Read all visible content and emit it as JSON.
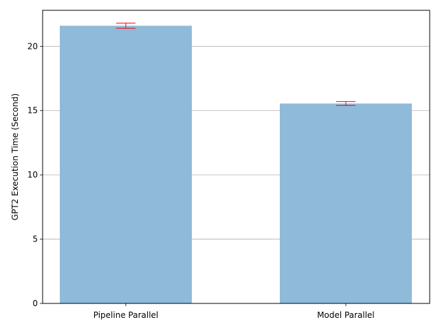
{
  "chart_data": {
    "type": "bar",
    "categories": [
      "Pipeline Parallel",
      "Model Parallel"
    ],
    "values": [
      21.6,
      15.55
    ],
    "errors": [
      0.2,
      0.15
    ],
    "title": "",
    "xlabel": "",
    "ylabel": "GPT2 Execution Time (Second)",
    "ylim": [
      0,
      22.8
    ],
    "yticks": [
      0,
      5,
      10,
      15,
      20
    ],
    "grid": "horizontal",
    "bar_color": "#8fbad9",
    "error_color": "#ff0000",
    "grid_color": "#b0b0b0",
    "axis_color": "#000000"
  }
}
